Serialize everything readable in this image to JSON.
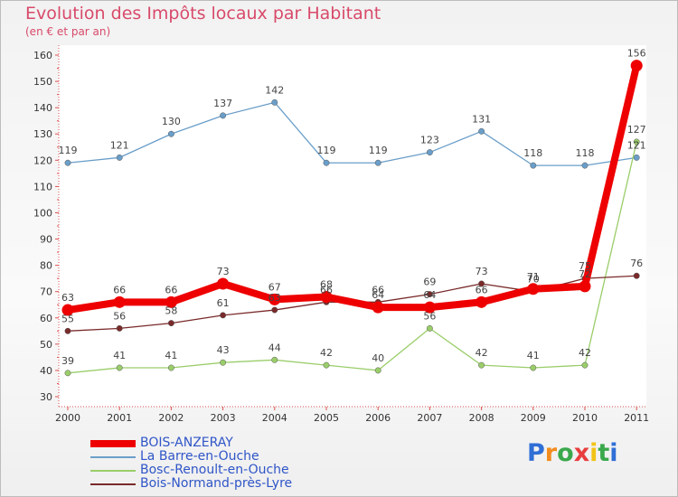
{
  "title": "Evolution des Impôts locaux par Habitant",
  "subtitle": "(en € et par an)",
  "logo": {
    "text": "Proxiti",
    "letters": [
      "P",
      "r",
      "o",
      "x",
      "i",
      "t",
      "i"
    ],
    "colors": [
      "#2f6fd6",
      "#f28c1e",
      "#3aa84b",
      "#e83e3e",
      "#f2c318",
      "#3aa84b",
      "#2f6fd6"
    ]
  },
  "chart_data": {
    "type": "line",
    "x": [
      "2000",
      "2001",
      "2002",
      "2003",
      "2004",
      "2005",
      "2006",
      "2007",
      "2008",
      "2009",
      "2010",
      "2011"
    ],
    "ylim": [
      30,
      160
    ],
    "yticks": [
      30,
      40,
      50,
      60,
      70,
      80,
      90,
      100,
      110,
      120,
      130,
      140,
      150,
      160
    ],
    "grid": false,
    "legend_position": "bottom-left",
    "series": [
      {
        "name": "BOIS-ANZERAY",
        "color": "#ee0000",
        "values": [
          63,
          66,
          66,
          73,
          67,
          68,
          64,
          64,
          66,
          71,
          72,
          156
        ],
        "labels": [
          "63",
          "66",
          "66",
          "73",
          "67",
          "68",
          "64",
          "64",
          "66",
          "71",
          "72",
          "156"
        ]
      },
      {
        "name": "La Barre-en-Ouche",
        "color": "#6a9ec9",
        "values": [
          119,
          121,
          130,
          137,
          142,
          119,
          119,
          123,
          131,
          118,
          118,
          121
        ],
        "labels": [
          "119",
          "121",
          "130",
          "137",
          "142",
          "119",
          "119",
          "123",
          "131",
          "118",
          "118",
          "121"
        ]
      },
      {
        "name": "Bosc-Renoult-en-Ouche",
        "color": "#9acd6a",
        "values": [
          39,
          41,
          41,
          43,
          44,
          42,
          40,
          56,
          42,
          41,
          42,
          127
        ],
        "labels": [
          "39",
          "41",
          "41",
          "43",
          "44",
          "42",
          "40",
          "56",
          "42",
          "41",
          "42",
          "127"
        ]
      },
      {
        "name": "Bois-Normand-près-Lyre",
        "color": "#7a2a2a",
        "values": [
          55,
          56,
          58,
          61,
          63,
          66,
          66,
          69,
          73,
          70,
          75,
          76
        ],
        "labels": [
          "55",
          "56",
          "58",
          "61",
          "63",
          "66",
          "66",
          "69",
          "73",
          "70",
          "75",
          "76"
        ]
      }
    ]
  }
}
